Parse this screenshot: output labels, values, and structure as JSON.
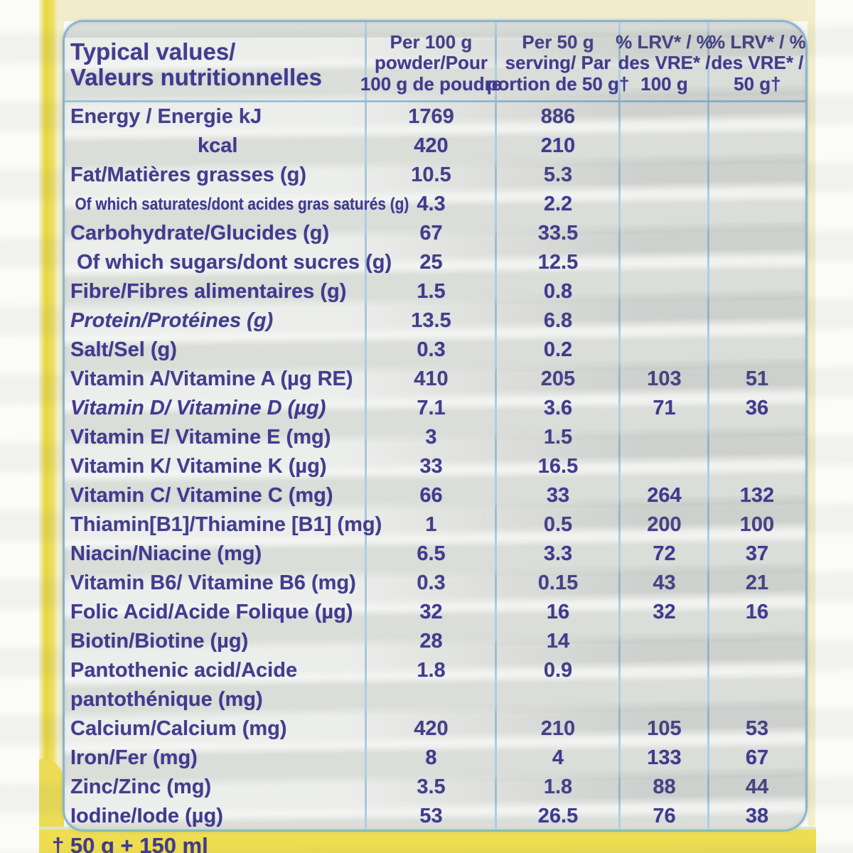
{
  "colors": {
    "ink": "#403a90",
    "grid_blue": "#abcfe5",
    "border_blue": "#8ab6d2",
    "table_bg": "#eef0ec",
    "label_yellow": "#e9d84a",
    "label_cream": "#f1ecca"
  },
  "table": {
    "title_line1": "Typical values/",
    "title_line2": "Valeurs nutritionnelles",
    "columns": [
      {
        "line1": "Per 100 g",
        "line2": "powder/Pour",
        "line3": "100 g de poudre"
      },
      {
        "line1": "Per 50 g",
        "line2": "serving/ Par",
        "line3": "portion de 50 g†"
      },
      {
        "line1": "% LRV* / %",
        "line2": "des VRE* /",
        "line3": "100 g"
      },
      {
        "line1": "% LRV* / %",
        "line2": "des VRE* /",
        "line3": "50 g†"
      }
    ],
    "rows": [
      {
        "label": "Energy / Energie kJ",
        "per100": "1769",
        "per50": "886",
        "lrv100": "",
        "lrv50": ""
      },
      {
        "label": "kcal",
        "per100": "420",
        "per50": "210",
        "lrv100": "",
        "lrv50": "",
        "kcal": true
      },
      {
        "label": "Fat/Matières grasses (g)",
        "per100": "10.5",
        "per50": "5.3",
        "lrv100": "",
        "lrv50": ""
      },
      {
        "label": "Of which saturates/dont acides gras saturés (g)",
        "per100": "4.3",
        "per50": "2.2",
        "lrv100": "",
        "lrv50": "",
        "indent": true,
        "condensed": true
      },
      {
        "label": "Carbohydrate/Glucides (g)",
        "per100": "67",
        "per50": "33.5",
        "lrv100": "",
        "lrv50": ""
      },
      {
        "label": "Of which sugars/dont sucres (g)",
        "per100": "25",
        "per50": "12.5",
        "lrv100": "",
        "lrv50": "",
        "indent": true
      },
      {
        "label": "Fibre/Fibres alimentaires (g)",
        "per100": "1.5",
        "per50": "0.8",
        "lrv100": "",
        "lrv50": ""
      },
      {
        "label": "Protein/Protéines (g)",
        "per100": "13.5",
        "per50": "6.8",
        "lrv100": "",
        "lrv50": "",
        "italic": true
      },
      {
        "label": "Salt/Sel (g)",
        "per100": "0.3",
        "per50": "0.2",
        "lrv100": "",
        "lrv50": ""
      },
      {
        "label": "Vitamin A/Vitamine A (µg RE)",
        "per100": "410",
        "per50": "205",
        "lrv100": "103",
        "lrv50": "51"
      },
      {
        "label": "Vitamin D/ Vitamine D (µg)",
        "per100": "7.1",
        "per50": "3.6",
        "lrv100": "71",
        "lrv50": "36",
        "italic": true
      },
      {
        "label": "Vitamin E/ Vitamine E (mg)",
        "per100": "3",
        "per50": "1.5",
        "lrv100": "",
        "lrv50": ""
      },
      {
        "label": "Vitamin K/ Vitamine K (µg)",
        "per100": "33",
        "per50": "16.5",
        "lrv100": "",
        "lrv50": ""
      },
      {
        "label": "Vitamin C/ Vitamine C (mg)",
        "per100": "66",
        "per50": "33",
        "lrv100": "264",
        "lrv50": "132"
      },
      {
        "label": "Thiamin[B1]/Thiamine [B1] (mg)",
        "per100": "1",
        "per50": "0.5",
        "lrv100": "200",
        "lrv50": "100"
      },
      {
        "label": "Niacin/Niacine (mg)",
        "per100": "6.5",
        "per50": "3.3",
        "lrv100": "72",
        "lrv50": "37"
      },
      {
        "label": "Vitamin B6/ Vitamine B6 (mg)",
        "per100": "0.3",
        "per50": "0.15",
        "lrv100": "43",
        "lrv50": "21"
      },
      {
        "label": "Folic Acid/Acide Folique (µg)",
        "per100": "32",
        "per50": "16",
        "lrv100": "32",
        "lrv50": "16"
      },
      {
        "label": "Biotin/Biotine (µg)",
        "per100": "28",
        "per50": "14",
        "lrv100": "",
        "lrv50": ""
      },
      {
        "label": "Pantothenic acid/Acide",
        "per100": "1.8",
        "per50": "0.9",
        "lrv100": "",
        "lrv50": ""
      },
      {
        "label": "pantothénique (mg)",
        "per100": "",
        "per50": "",
        "lrv100": "",
        "lrv50": ""
      },
      {
        "label": "Calcium/Calcium (mg)",
        "per100": "420",
        "per50": "210",
        "lrv100": "105",
        "lrv50": "53"
      },
      {
        "label": "Iron/Fer (mg)",
        "per100": "8",
        "per50": "4",
        "lrv100": "133",
        "lrv50": "67"
      },
      {
        "label": "Zinc/Zinc (mg)",
        "per100": "3.5",
        "per50": "1.8",
        "lrv100": "88",
        "lrv50": "44"
      },
      {
        "label": "Iodine/Iode (µg)",
        "per100": "53",
        "per50": "26.5",
        "lrv100": "76",
        "lrv50": "38"
      }
    ],
    "footnote": "† 50 g + 150 ml"
  }
}
